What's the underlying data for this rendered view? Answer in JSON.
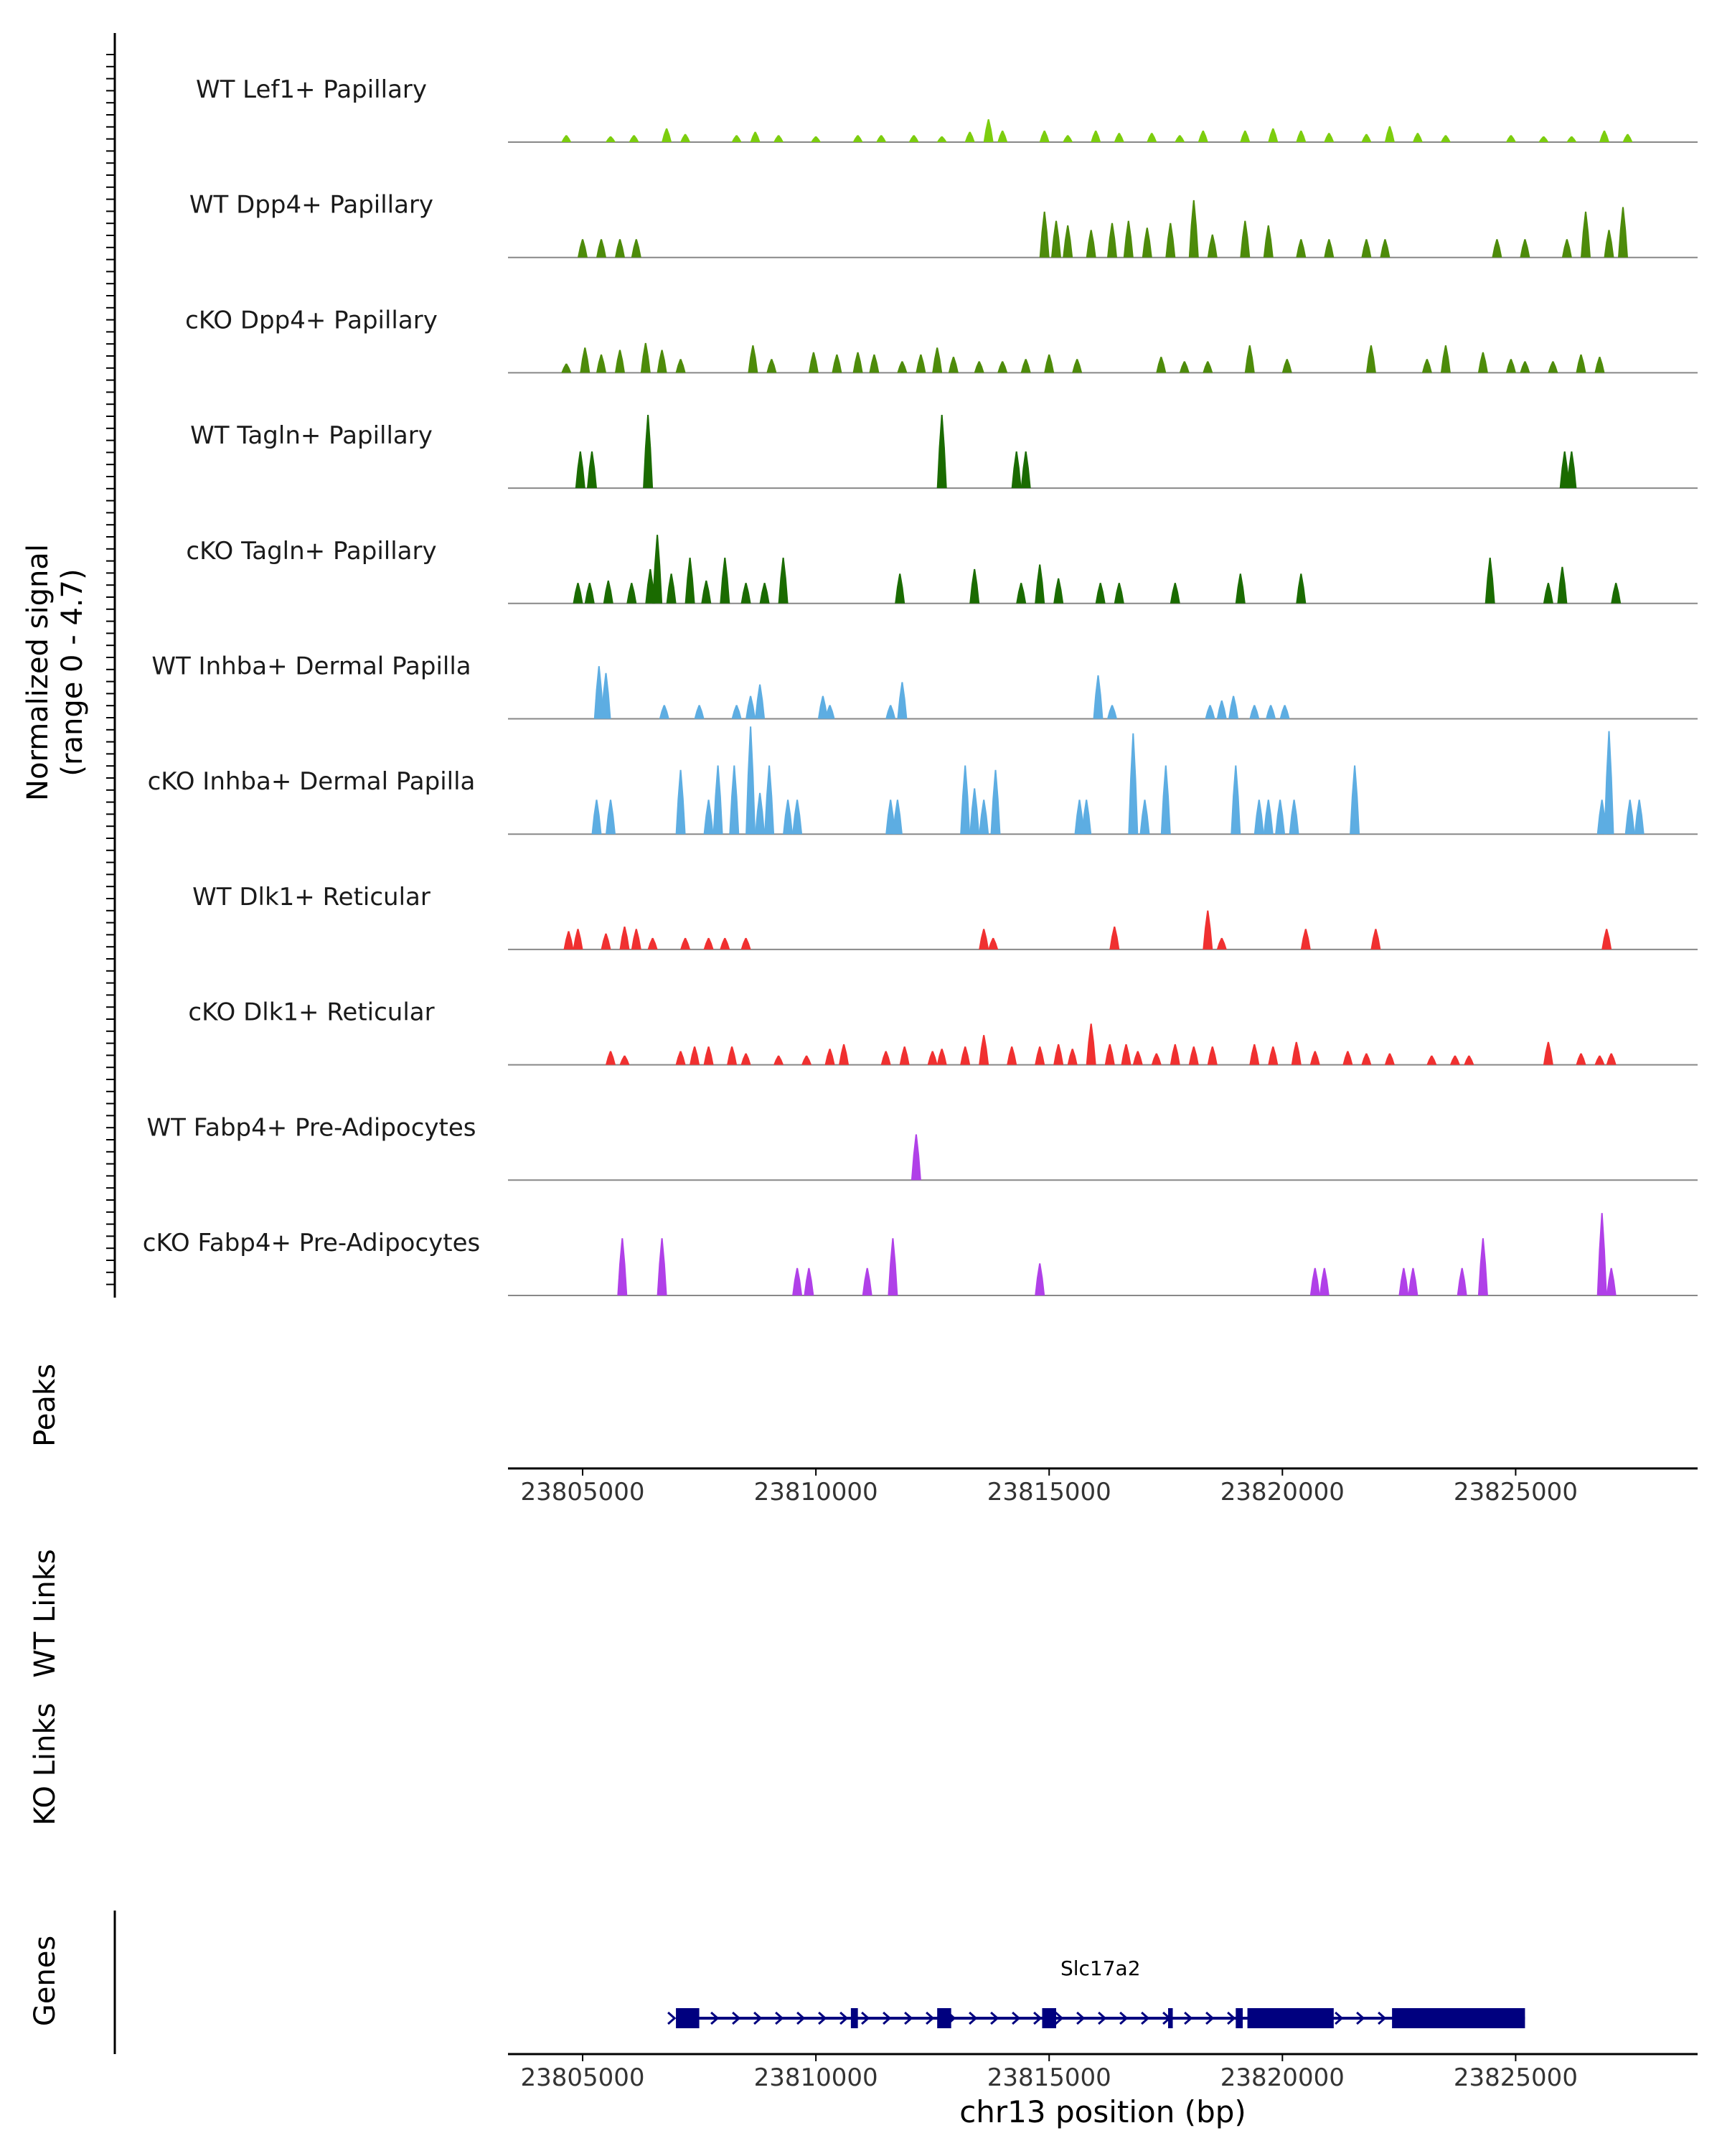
{
  "chart_data": {
    "type": "area",
    "title": "",
    "chromosome": "chr13",
    "xlabel": "chr13 position (bp)",
    "ylabel": "Normalized signal",
    "ylabel_range": "(range 0 - 4.7)",
    "ylim": [
      0,
      4.7
    ],
    "xlim": [
      23803400,
      23828900
    ],
    "x_ticks": [
      "23805000",
      "23810000",
      "23815000",
      "23820000",
      "23825000"
    ],
    "track_labels": {
      "peaks": "Peaks",
      "wt_links": "WT Links",
      "ko_links": "KO Links",
      "genes": "Genes"
    },
    "series": [
      {
        "name": "WT Lef1+ Papillary",
        "color": "#7CCD0E",
        "peaks": [
          [
            23804650,
            0.3
          ],
          [
            23805600,
            0.25
          ],
          [
            23806100,
            0.3
          ],
          [
            23806800,
            0.6
          ],
          [
            23807200,
            0.35
          ],
          [
            23808300,
            0.3
          ],
          [
            23808700,
            0.45
          ],
          [
            23809200,
            0.3
          ],
          [
            23810000,
            0.25
          ],
          [
            23810900,
            0.3
          ],
          [
            23811400,
            0.3
          ],
          [
            23812100,
            0.3
          ],
          [
            23812700,
            0.25
          ],
          [
            23813300,
            0.45
          ],
          [
            23813700,
            1.0
          ],
          [
            23814000,
            0.5
          ],
          [
            23814900,
            0.5
          ],
          [
            23815400,
            0.3
          ],
          [
            23816000,
            0.5
          ],
          [
            23816500,
            0.4
          ],
          [
            23817200,
            0.4
          ],
          [
            23817800,
            0.3
          ],
          [
            23818300,
            0.5
          ],
          [
            23819200,
            0.5
          ],
          [
            23819800,
            0.6
          ],
          [
            23820400,
            0.5
          ],
          [
            23821000,
            0.4
          ],
          [
            23821800,
            0.35
          ],
          [
            23822300,
            0.7
          ],
          [
            23822900,
            0.4
          ],
          [
            23823500,
            0.3
          ],
          [
            23824900,
            0.3
          ],
          [
            23825600,
            0.25
          ],
          [
            23826200,
            0.25
          ],
          [
            23826900,
            0.5
          ],
          [
            23827400,
            0.35
          ]
        ]
      },
      {
        "name": "WT Dpp4+ Papillary",
        "color": "#4D8B0A",
        "peaks": [
          [
            23805000,
            0.8
          ],
          [
            23805400,
            0.8
          ],
          [
            23805800,
            0.8
          ],
          [
            23806150,
            0.8
          ],
          [
            23814900,
            2.0
          ],
          [
            23815150,
            1.6
          ],
          [
            23815400,
            1.4
          ],
          [
            23815900,
            1.2
          ],
          [
            23816350,
            1.5
          ],
          [
            23816700,
            1.6
          ],
          [
            23817100,
            1.3
          ],
          [
            23817600,
            1.5
          ],
          [
            23818100,
            2.5
          ],
          [
            23818500,
            1.0
          ],
          [
            23819200,
            1.6
          ],
          [
            23819700,
            1.4
          ],
          [
            23820400,
            0.8
          ],
          [
            23821000,
            0.8
          ],
          [
            23821800,
            0.8
          ],
          [
            23822200,
            0.8
          ],
          [
            23824600,
            0.8
          ],
          [
            23825200,
            0.8
          ],
          [
            23826100,
            0.8
          ],
          [
            23826500,
            2.0
          ],
          [
            23827000,
            1.2
          ],
          [
            23827300,
            2.2
          ]
        ]
      },
      {
        "name": "cKO Dpp4+ Papillary",
        "color": "#4D8B0A",
        "peaks": [
          [
            23804650,
            0.4
          ],
          [
            23805050,
            1.1
          ],
          [
            23805400,
            0.8
          ],
          [
            23805800,
            1.0
          ],
          [
            23806350,
            1.3
          ],
          [
            23806700,
            1.0
          ],
          [
            23807100,
            0.6
          ],
          [
            23808650,
            1.2
          ],
          [
            23809050,
            0.6
          ],
          [
            23809950,
            0.9
          ],
          [
            23810450,
            0.8
          ],
          [
            23810900,
            0.9
          ],
          [
            23811250,
            0.8
          ],
          [
            23811850,
            0.5
          ],
          [
            23812250,
            0.8
          ],
          [
            23812600,
            1.1
          ],
          [
            23812950,
            0.7
          ],
          [
            23813500,
            0.5
          ],
          [
            23814000,
            0.5
          ],
          [
            23814500,
            0.6
          ],
          [
            23815000,
            0.8
          ],
          [
            23815600,
            0.6
          ],
          [
            23817400,
            0.7
          ],
          [
            23817900,
            0.5
          ],
          [
            23818400,
            0.5
          ],
          [
            23819300,
            1.2
          ],
          [
            23820100,
            0.6
          ],
          [
            23821900,
            1.2
          ],
          [
            23823100,
            0.6
          ],
          [
            23823500,
            1.2
          ],
          [
            23824300,
            0.9
          ],
          [
            23824900,
            0.6
          ],
          [
            23825200,
            0.5
          ],
          [
            23825800,
            0.5
          ],
          [
            23826400,
            0.8
          ],
          [
            23826800,
            0.7
          ]
        ]
      },
      {
        "name": "WT Tagln+ Papillary",
        "color": "#1A6B00",
        "peaks": [
          [
            23804950,
            1.6
          ],
          [
            23805200,
            1.6
          ],
          [
            23806400,
            3.2
          ],
          [
            23812700,
            3.2
          ],
          [
            23814300,
            1.6
          ],
          [
            23814500,
            1.6
          ],
          [
            23826050,
            1.6
          ],
          [
            23826200,
            1.6
          ]
        ]
      },
      {
        "name": "cKO Tagln+ Papillary",
        "color": "#1A6B00",
        "peaks": [
          [
            23804900,
            0.9
          ],
          [
            23805150,
            0.9
          ],
          [
            23805550,
            1.0
          ],
          [
            23806050,
            0.9
          ],
          [
            23806450,
            1.5
          ],
          [
            23806600,
            3.0
          ],
          [
            23806900,
            1.3
          ],
          [
            23807300,
            2.0
          ],
          [
            23807650,
            1.0
          ],
          [
            23808050,
            2.0
          ],
          [
            23808500,
            0.9
          ],
          [
            23808900,
            0.9
          ],
          [
            23809300,
            2.0
          ],
          [
            23811800,
            1.3
          ],
          [
            23813400,
            1.5
          ],
          [
            23814400,
            0.9
          ],
          [
            23814800,
            1.7
          ],
          [
            23815200,
            1.1
          ],
          [
            23816100,
            0.9
          ],
          [
            23816500,
            0.9
          ],
          [
            23817700,
            0.9
          ],
          [
            23819100,
            1.3
          ],
          [
            23820400,
            1.3
          ],
          [
            23824450,
            2.0
          ],
          [
            23825700,
            0.9
          ],
          [
            23826000,
            1.6
          ],
          [
            23827150,
            0.9
          ]
        ]
      },
      {
        "name": "WT Inhba+ Dermal Papilla",
        "color": "#5DADE2",
        "peaks": [
          [
            23805350,
            2.3
          ],
          [
            23805500,
            2.0
          ],
          [
            23806750,
            0.6
          ],
          [
            23807500,
            0.6
          ],
          [
            23808300,
            0.6
          ],
          [
            23808600,
            1.0
          ],
          [
            23808800,
            1.5
          ],
          [
            23810150,
            1.0
          ],
          [
            23810300,
            0.6
          ],
          [
            23811600,
            0.6
          ],
          [
            23811850,
            1.6
          ],
          [
            23816050,
            1.9
          ],
          [
            23816350,
            0.6
          ],
          [
            23818450,
            0.6
          ],
          [
            23818700,
            0.8
          ],
          [
            23818950,
            1.0
          ],
          [
            23819400,
            0.6
          ],
          [
            23819750,
            0.6
          ],
          [
            23820050,
            0.6
          ]
        ]
      },
      {
        "name": "cKO Inhba+ Dermal Papilla",
        "color": "#5DADE2",
        "peaks": [
          [
            23805300,
            1.5
          ],
          [
            23805600,
            1.5
          ],
          [
            23807100,
            2.8
          ],
          [
            23807700,
            1.5
          ],
          [
            23807900,
            3.0
          ],
          [
            23808250,
            3.0
          ],
          [
            23808600,
            4.7
          ],
          [
            23808800,
            1.8
          ],
          [
            23809000,
            3.0
          ],
          [
            23809400,
            1.5
          ],
          [
            23809600,
            1.5
          ],
          [
            23811600,
            1.5
          ],
          [
            23811750,
            1.5
          ],
          [
            23813200,
            3.0
          ],
          [
            23813400,
            2.0
          ],
          [
            23813600,
            1.5
          ],
          [
            23813850,
            2.8
          ],
          [
            23815650,
            1.5
          ],
          [
            23815800,
            1.5
          ],
          [
            23816800,
            4.4
          ],
          [
            23817050,
            1.5
          ],
          [
            23817500,
            3.0
          ],
          [
            23819000,
            3.0
          ],
          [
            23819500,
            1.5
          ],
          [
            23819700,
            1.5
          ],
          [
            23819950,
            1.5
          ],
          [
            23820250,
            1.5
          ],
          [
            23821550,
            3.0
          ],
          [
            23826850,
            1.5
          ],
          [
            23827000,
            4.5
          ],
          [
            23827450,
            1.5
          ],
          [
            23827650,
            1.5
          ]
        ]
      },
      {
        "name": "WT Dlk1+ Reticular",
        "color": "#F03030",
        "peaks": [
          [
            23804700,
            0.8
          ],
          [
            23804900,
            0.9
          ],
          [
            23805500,
            0.7
          ],
          [
            23805900,
            1.0
          ],
          [
            23806150,
            0.9
          ],
          [
            23806500,
            0.5
          ],
          [
            23807200,
            0.5
          ],
          [
            23807700,
            0.5
          ],
          [
            23808050,
            0.5
          ],
          [
            23808500,
            0.5
          ],
          [
            23813600,
            0.9
          ],
          [
            23813800,
            0.5
          ],
          [
            23816400,
            1.0
          ],
          [
            23818400,
            1.7
          ],
          [
            23818700,
            0.5
          ],
          [
            23820500,
            0.9
          ],
          [
            23822000,
            0.9
          ],
          [
            23826950,
            0.9
          ]
        ]
      },
      {
        "name": "cKO Dlk1+ Reticular",
        "color": "#F03030",
        "peaks": [
          [
            23805600,
            0.6
          ],
          [
            23805900,
            0.4
          ],
          [
            23807100,
            0.6
          ],
          [
            23807400,
            0.8
          ],
          [
            23807700,
            0.8
          ],
          [
            23808200,
            0.8
          ],
          [
            23808500,
            0.5
          ],
          [
            23809200,
            0.4
          ],
          [
            23809800,
            0.4
          ],
          [
            23810300,
            0.7
          ],
          [
            23810600,
            0.9
          ],
          [
            23811500,
            0.6
          ],
          [
            23811900,
            0.8
          ],
          [
            23812500,
            0.6
          ],
          [
            23812700,
            0.7
          ],
          [
            23813200,
            0.8
          ],
          [
            23813600,
            1.3
          ],
          [
            23814200,
            0.8
          ],
          [
            23814800,
            0.8
          ],
          [
            23815200,
            0.9
          ],
          [
            23815500,
            0.7
          ],
          [
            23815900,
            1.8
          ],
          [
            23816300,
            0.9
          ],
          [
            23816650,
            0.9
          ],
          [
            23816900,
            0.6
          ],
          [
            23817300,
            0.5
          ],
          [
            23817700,
            0.9
          ],
          [
            23818100,
            0.8
          ],
          [
            23818500,
            0.8
          ],
          [
            23819400,
            0.9
          ],
          [
            23819800,
            0.8
          ],
          [
            23820300,
            1.0
          ],
          [
            23820700,
            0.6
          ],
          [
            23821400,
            0.6
          ],
          [
            23821800,
            0.5
          ],
          [
            23822300,
            0.5
          ],
          [
            23823200,
            0.4
          ],
          [
            23823700,
            0.4
          ],
          [
            23824000,
            0.4
          ],
          [
            23825700,
            1.0
          ],
          [
            23826400,
            0.5
          ],
          [
            23826800,
            0.4
          ],
          [
            23827050,
            0.5
          ]
        ]
      },
      {
        "name": "WT Fabp4+ Pre-Adipocytes",
        "color": "#B040E8",
        "peaks": [
          [
            23812150,
            2.0
          ]
        ]
      },
      {
        "name": "cKO Fabp4+ Pre-Adipocytes",
        "color": "#B040E8",
        "peaks": [
          [
            23805850,
            2.5
          ],
          [
            23806700,
            2.5
          ],
          [
            23809600,
            1.2
          ],
          [
            23809850,
            1.2
          ],
          [
            23811100,
            1.2
          ],
          [
            23811650,
            2.5
          ],
          [
            23814800,
            1.4
          ],
          [
            23820700,
            1.2
          ],
          [
            23820900,
            1.2
          ],
          [
            23822600,
            1.2
          ],
          [
            23822800,
            1.2
          ],
          [
            23823850,
            1.2
          ],
          [
            23824300,
            2.5
          ],
          [
            23826850,
            3.6
          ],
          [
            23827050,
            1.2
          ]
        ]
      }
    ],
    "gene": {
      "name": "Slc17a2",
      "start": 23807000,
      "end": 23825200,
      "strand": "+",
      "color": "#00007F",
      "exons": [
        [
          23807000,
          23807500
        ],
        [
          23810750,
          23810900
        ],
        [
          23812600,
          23812900
        ],
        [
          23814850,
          23815150
        ],
        [
          23817550,
          23817650
        ],
        [
          23819000,
          23819150
        ],
        [
          23819250,
          23821100
        ],
        [
          23822350,
          23825200
        ]
      ]
    }
  }
}
